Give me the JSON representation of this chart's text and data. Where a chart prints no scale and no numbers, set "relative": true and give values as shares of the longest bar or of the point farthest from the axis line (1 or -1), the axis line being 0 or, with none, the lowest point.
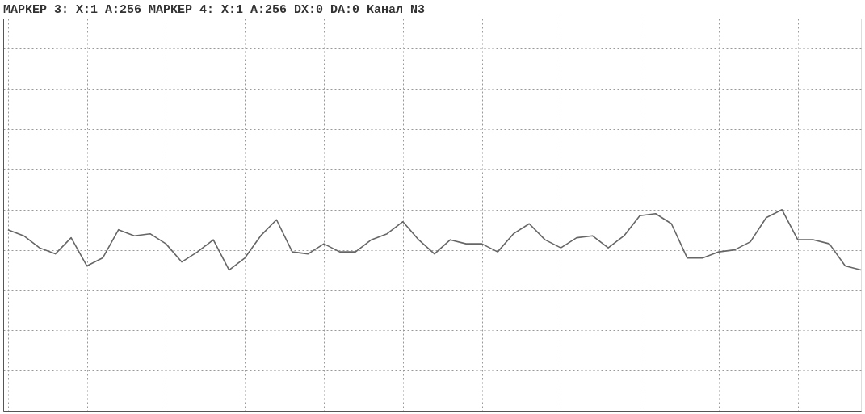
{
  "chart_data": {
    "type": "line",
    "title": "МАРКЕР 3: X:1 A:256    МАРКЕР 4: X:1 A:256    DX:0 DA:0 Канал N3",
    "relative": true,
    "grid": true,
    "tick_labels": false,
    "marker": "none",
    "line_style": "solid",
    "categories": [
      null,
      null,
      null,
      null,
      null,
      null,
      null,
      null,
      null,
      null,
      null,
      null,
      null,
      null,
      null,
      null,
      null,
      null,
      null,
      null,
      null,
      null,
      null,
      null,
      null,
      null,
      null,
      null,
      null,
      null,
      null,
      null,
      null,
      null,
      null,
      null,
      null,
      null,
      null,
      null,
      null,
      null,
      null,
      null,
      null,
      null,
      null,
      null,
      null,
      null,
      null,
      null,
      null,
      null,
      null
    ],
    "series": [
      {
        "color": "#666666",
        "values": [
          0.9,
          0.87,
          0.81,
          0.78,
          0.86,
          0.72,
          0.76,
          0.9,
          0.87,
          0.88,
          0.83,
          0.74,
          0.79,
          0.85,
          0.7,
          0.76,
          0.87,
          0.95,
          0.79,
          0.78,
          0.83,
          0.79,
          0.79,
          0.85,
          0.88,
          0.94,
          0.85,
          0.78,
          0.85,
          0.83,
          0.83,
          0.79,
          0.88,
          0.93,
          0.85,
          0.81,
          0.86,
          0.87,
          0.81,
          0.87,
          0.97,
          0.98,
          0.93,
          0.76,
          0.76,
          0.79,
          0.8,
          0.84,
          0.96,
          1,
          0.85,
          0.85,
          0.83,
          0.72,
          0.7
        ]
      }
    ]
  }
}
